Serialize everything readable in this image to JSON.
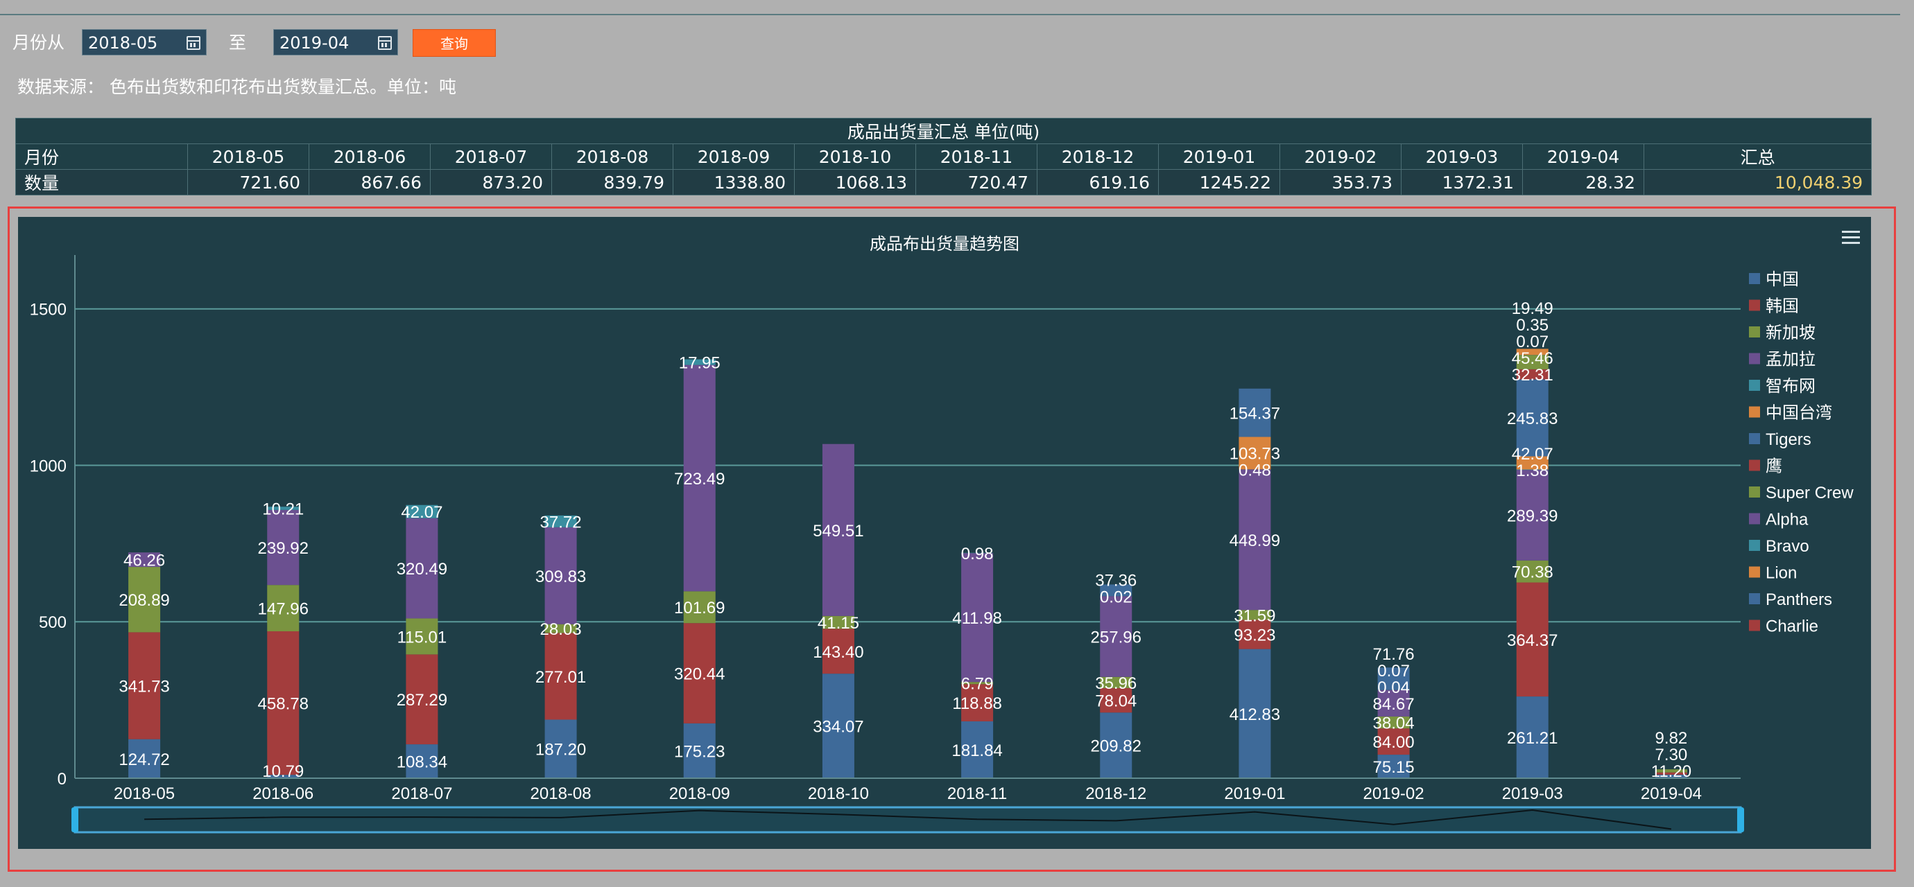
{
  "filter": {
    "from_label": "月份从",
    "from_value": "2018-05",
    "to_label": "至",
    "to_value": "2019-04",
    "query_label": "查询",
    "source_text": "数据来源： 色布出货数和印花布出货数量汇总。单位：吨"
  },
  "summary": {
    "title": "成品出货量汇总 单位(吨)",
    "month_label": "月份",
    "qty_label": "数量",
    "total_label": "汇总",
    "months": [
      "2018-05",
      "2018-06",
      "2018-07",
      "2018-08",
      "2018-09",
      "2018-10",
      "2018-11",
      "2018-12",
      "2019-01",
      "2019-02",
      "2019-03",
      "2019-04"
    ],
    "values": [
      "721.60",
      "867.66",
      "873.20",
      "839.79",
      "1338.80",
      "1068.13",
      "720.47",
      "619.16",
      "1245.22",
      "353.73",
      "1372.31",
      "28.32"
    ],
    "total": "10,048.39"
  },
  "colors": {
    "series_palette": [
      "#3e6a99",
      "#a33d3d",
      "#7a9440",
      "#6b5090",
      "#3a8ea0",
      "#d9843d",
      "#3e6a99",
      "#a33d3d",
      "#7a9440",
      "#6b5090",
      "#3a8ea0",
      "#d9843d",
      "#3e6a99",
      "#a33d3d"
    ],
    "panel_bg": "#1f3e47",
    "query_button": "#ff6a26",
    "total_value": "#f0d070"
  },
  "chart_data": {
    "type": "bar",
    "stacked": true,
    "title": "成品布出货量趋势图",
    "categories": [
      "2018-05",
      "2018-06",
      "2018-07",
      "2018-08",
      "2018-09",
      "2018-10",
      "2018-11",
      "2018-12",
      "2019-01",
      "2019-02",
      "2019-03",
      "2019-04"
    ],
    "ylim": [
      0,
      1650
    ],
    "yticks": [
      0,
      500,
      1000,
      1500
    ],
    "grid": true,
    "legend_position": "right",
    "data_zoom": true,
    "series": [
      {
        "name": "中国",
        "values": [
          124.72,
          10.79,
          108.34,
          187.2,
          175.23,
          334.07,
          181.84,
          209.82,
          412.83,
          75.15,
          261.21,
          11.2
        ]
      },
      {
        "name": "韩国",
        "values": [
          341.73,
          458.78,
          287.29,
          277.01,
          320.44,
          143.4,
          118.88,
          78.04,
          93.23,
          84.0,
          364.37,
          7.3
        ]
      },
      {
        "name": "新加坡",
        "values": [
          208.89,
          147.96,
          115.01,
          28.03,
          101.69,
          41.15,
          6.79,
          35.96,
          31.59,
          38.04,
          70.38,
          9.82
        ]
      },
      {
        "name": "孟加拉",
        "values": [
          46.26,
          239.92,
          320.49,
          309.83,
          723.49,
          549.51,
          411.98,
          257.96,
          448.99,
          84.67,
          289.39,
          null
        ]
      },
      {
        "name": "智布网",
        "values": [
          null,
          10.21,
          42.07,
          37.72,
          17.95,
          null,
          0.98,
          null,
          0.48,
          0.04,
          1.38,
          null
        ]
      },
      {
        "name": "中国台湾",
        "values": [
          null,
          null,
          null,
          null,
          null,
          null,
          null,
          0.02,
          103.73,
          0.07,
          42.07,
          null
        ]
      },
      {
        "name": "Tigers",
        "values": [
          null,
          null,
          null,
          null,
          null,
          null,
          null,
          37.36,
          154.37,
          71.76,
          245.83,
          null
        ]
      },
      {
        "name": "鹰",
        "values": [
          null,
          null,
          null,
          null,
          null,
          null,
          null,
          null,
          null,
          null,
          32.31,
          null
        ]
      },
      {
        "name": "Super Crew",
        "values": [
          null,
          null,
          null,
          null,
          null,
          null,
          null,
          null,
          null,
          null,
          45.46,
          null
        ]
      },
      {
        "name": "Alpha",
        "values": [
          null,
          null,
          null,
          null,
          null,
          null,
          null,
          null,
          null,
          null,
          0.07,
          null
        ]
      },
      {
        "name": "Bravo",
        "values": [
          null,
          null,
          null,
          null,
          null,
          null,
          null,
          null,
          null,
          null,
          0.35,
          null
        ]
      },
      {
        "name": "Lion",
        "values": [
          null,
          null,
          null,
          null,
          null,
          null,
          null,
          null,
          null,
          null,
          19.49,
          null
        ]
      },
      {
        "name": "Panthers",
        "values": [
          null,
          null,
          null,
          null,
          null,
          null,
          null,
          null,
          null,
          null,
          null,
          null
        ]
      },
      {
        "name": "Charlie",
        "values": [
          null,
          null,
          null,
          null,
          null,
          null,
          null,
          null,
          null,
          null,
          null,
          null
        ]
      }
    ],
    "totals": [
      721.6,
      867.66,
      873.2,
      839.79,
      1338.8,
      1068.13,
      720.47,
      619.16,
      1245.22,
      353.73,
      1372.31,
      28.32
    ]
  }
}
